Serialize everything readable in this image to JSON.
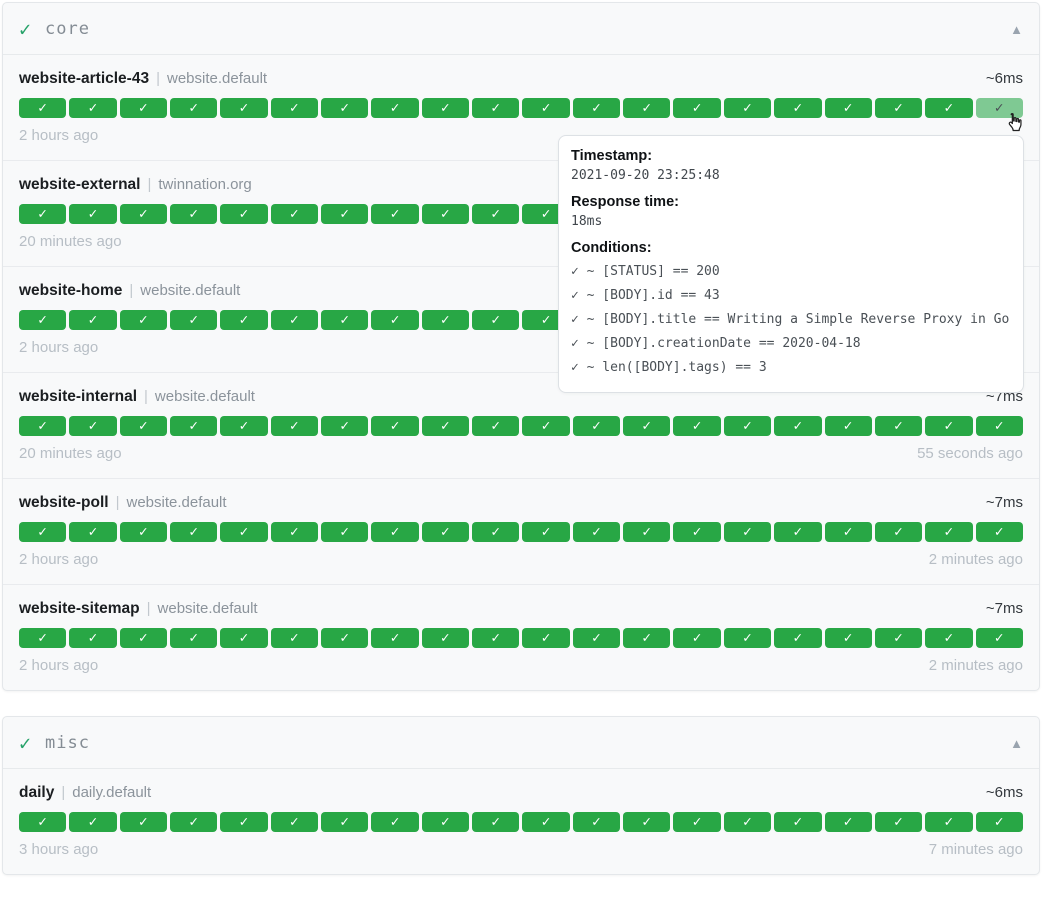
{
  "ui": {
    "separator": "|",
    "badge_check": "✓",
    "group_check": "✓",
    "collapse_icon": "▲"
  },
  "colors": {
    "badge_green": "#28a745",
    "badge_green_hover": "#7fc993",
    "group_check_green": "#26a269"
  },
  "groups": [
    {
      "name": "core",
      "endpoints": [
        {
          "name": "website-article-43",
          "suffix": "website.default",
          "response_time": "~6ms",
          "time_left": "2 hours ago",
          "time_right": "",
          "badges": 20,
          "hovered_last": true
        },
        {
          "name": "website-external",
          "suffix": "twinnation.org",
          "response_time": "",
          "time_left": "20 minutes ago",
          "time_right": "",
          "badges": 20
        },
        {
          "name": "website-home",
          "suffix": "website.default",
          "response_time": "",
          "time_left": "2 hours ago",
          "time_right": "",
          "badges": 20
        },
        {
          "name": "website-internal",
          "suffix": "website.default",
          "response_time": "~7ms",
          "time_left": "20 minutes ago",
          "time_right": "55 seconds ago",
          "badges": 20
        },
        {
          "name": "website-poll",
          "suffix": "website.default",
          "response_time": "~7ms",
          "time_left": "2 hours ago",
          "time_right": "2 minutes ago",
          "badges": 20
        },
        {
          "name": "website-sitemap",
          "suffix": "website.default",
          "response_time": "~7ms",
          "time_left": "2 hours ago",
          "time_right": "2 minutes ago",
          "badges": 20
        }
      ]
    },
    {
      "name": "misc",
      "endpoints": [
        {
          "name": "daily",
          "suffix": "daily.default",
          "response_time": "~6ms",
          "time_left": "3 hours ago",
          "time_right": "7 minutes ago",
          "badges": 20
        }
      ]
    }
  ],
  "tooltip": {
    "timestamp_label": "Timestamp:",
    "timestamp": "2021-09-20 23:25:48",
    "response_time_label": "Response time:",
    "response_time": "18ms",
    "conditions_label": "Conditions:",
    "conditions": [
      "✓ ~ [STATUS] == 200",
      "✓ ~ [BODY].id == 43",
      "✓ ~ [BODY].title == Writing a Simple Reverse Proxy in Go",
      "✓ ~ [BODY].creationDate == 2020-04-18",
      "✓ ~ len([BODY].tags) == 3"
    ]
  }
}
